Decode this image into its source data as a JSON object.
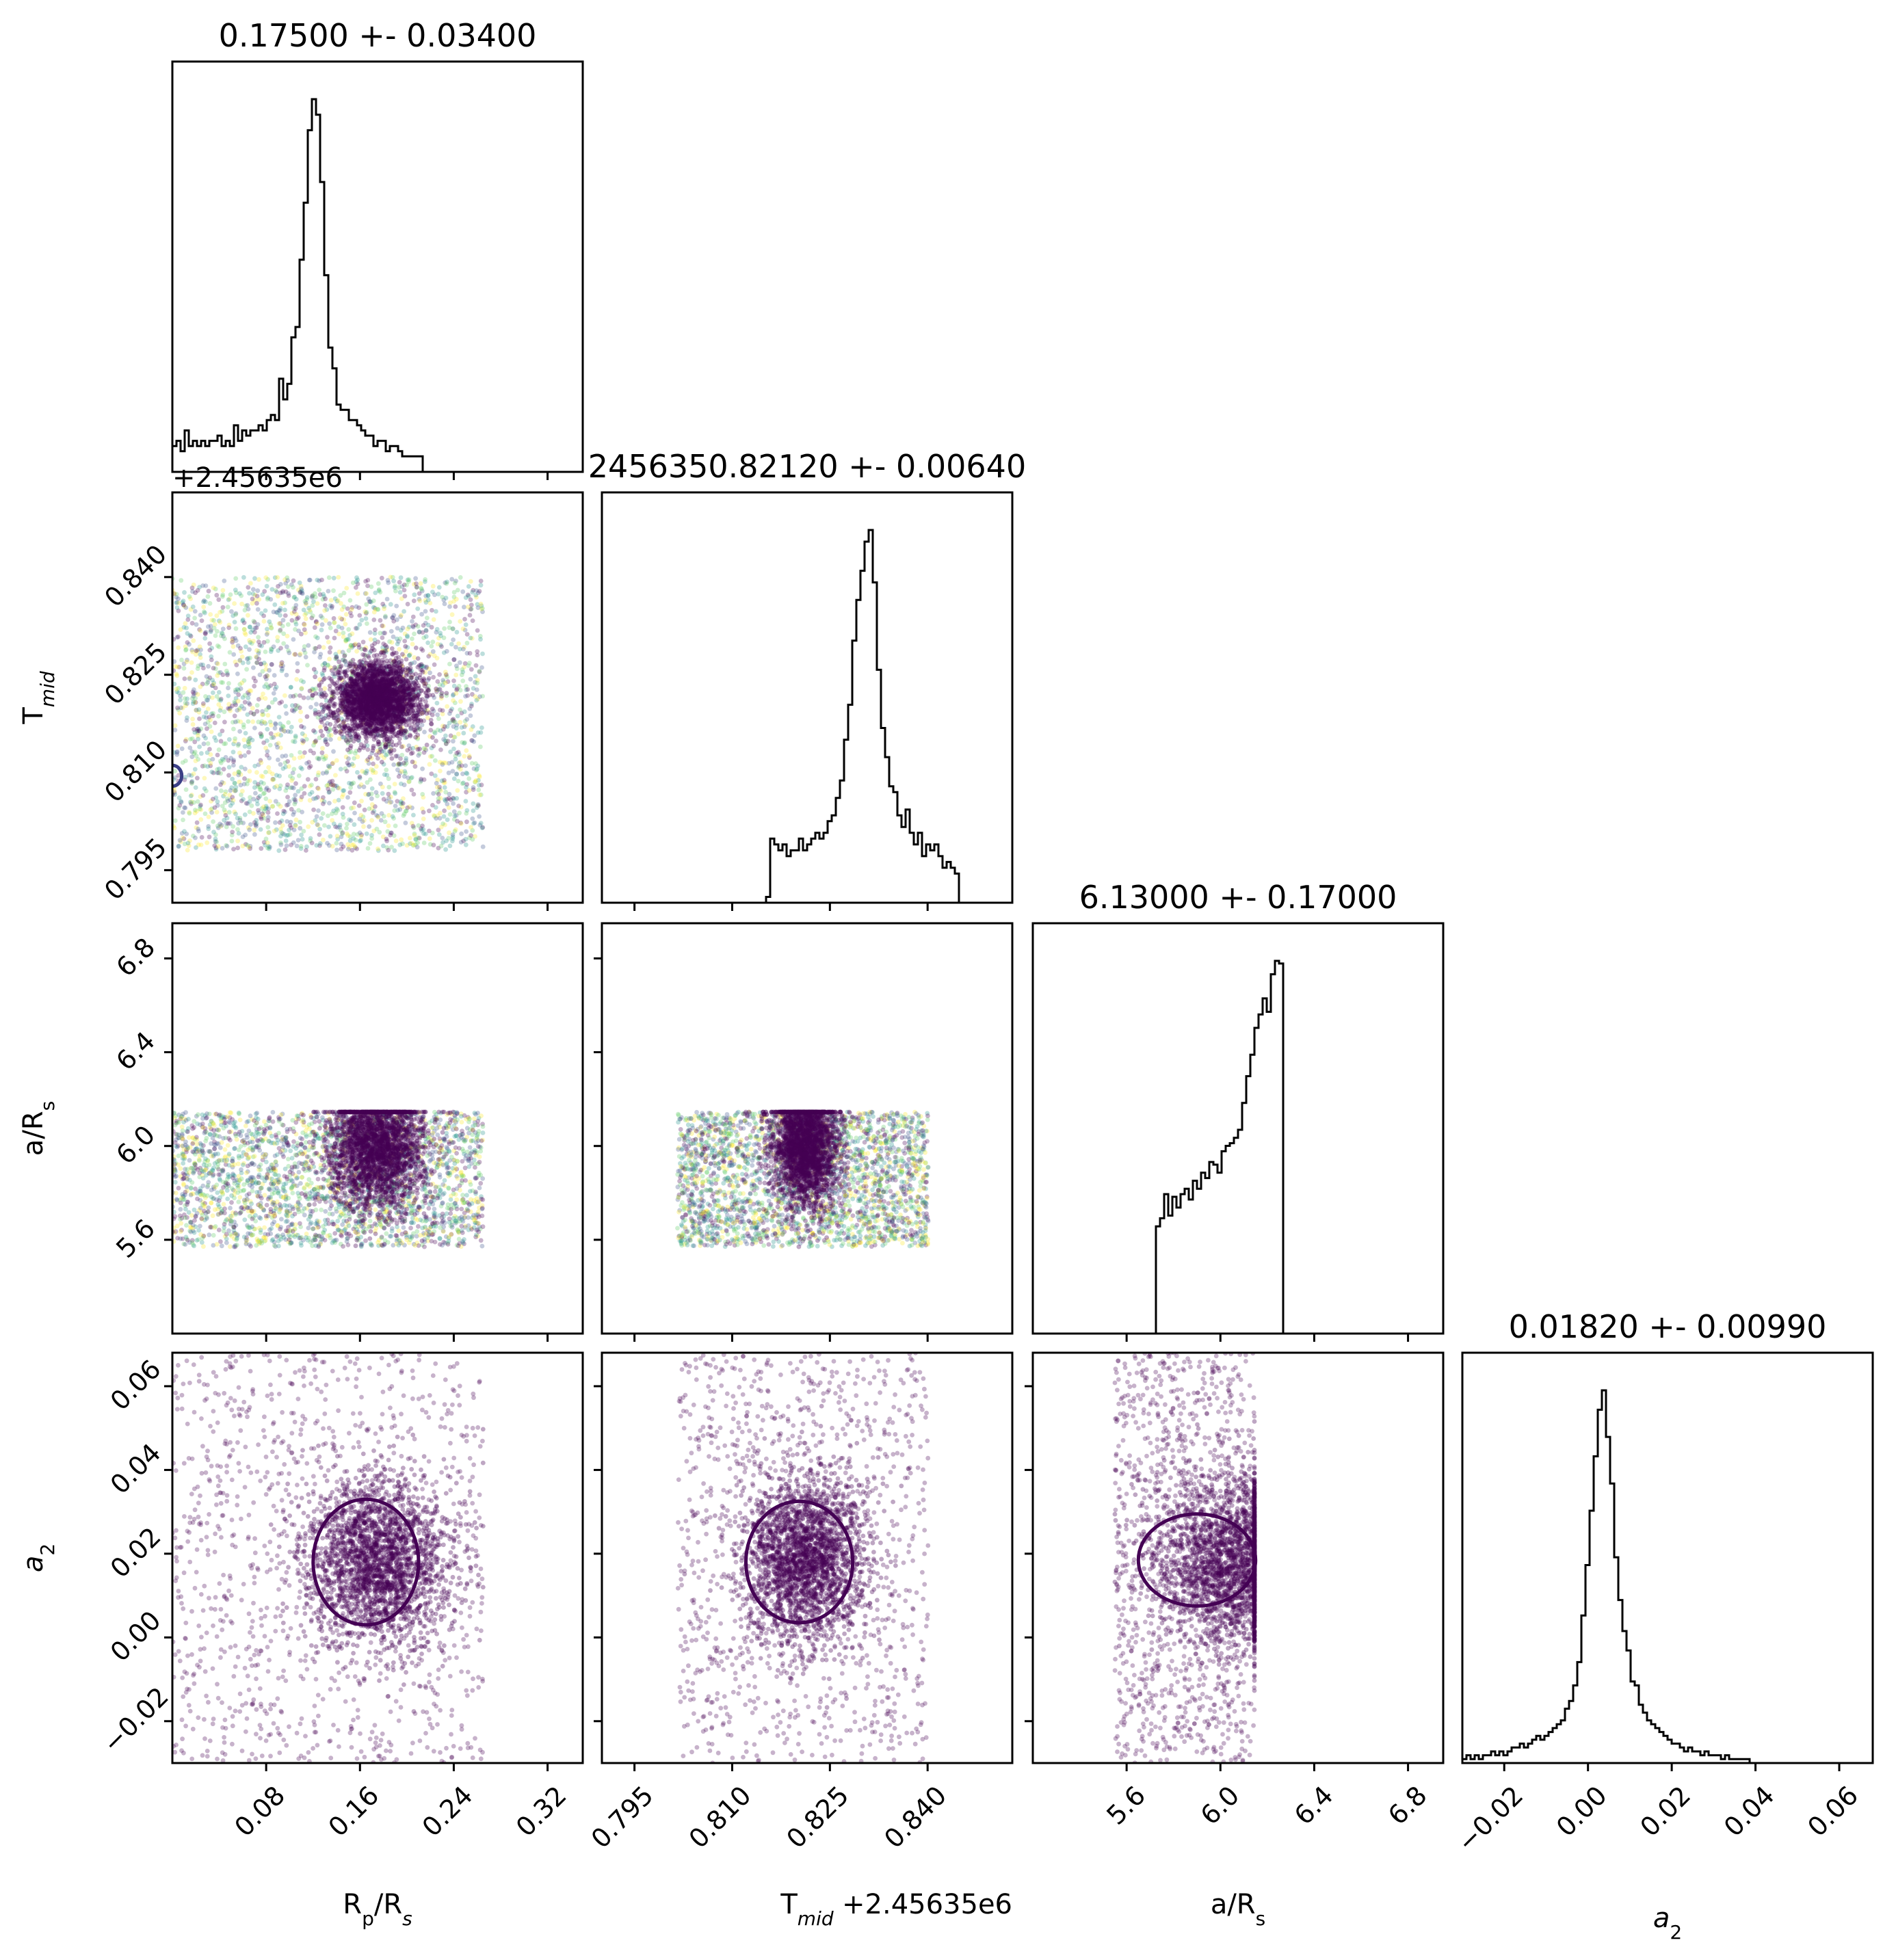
{
  "chart_data": {
    "type": "scatter",
    "kind": "corner-plot",
    "parameters": [
      {
        "key": "rp",
        "label_main": "R",
        "label_sub1": "p",
        "label_mid": "/R",
        "label_sub2": "s",
        "range": [
          0.0,
          0.35
        ],
        "ticks": [
          "0.08",
          "0.16",
          "0.24",
          "0.32"
        ],
        "tick_values": [
          0.08,
          0.16,
          0.24,
          0.32
        ],
        "offset_label": "",
        "title": "0.17500 +- 0.03400"
      },
      {
        "key": "tmid",
        "label_main": "T",
        "label_sub1": "mid",
        "label_mid": "",
        "label_sub2": "",
        "range": [
          0.79,
          0.853
        ],
        "ticks": [
          "0.795",
          "0.810",
          "0.825",
          "0.840"
        ],
        "tick_values": [
          0.795,
          0.81,
          0.825,
          0.84
        ],
        "offset_label": "+2.45635e6",
        "title": "2456350.82120 +- 0.00640"
      },
      {
        "key": "ars",
        "label_main": "a/R",
        "label_sub1": "s",
        "label_mid": "",
        "label_sub2": "",
        "range": [
          5.2,
          6.95
        ],
        "ticks": [
          "5.6",
          "6.0",
          "6.4",
          "6.8"
        ],
        "tick_values": [
          5.6,
          6.0,
          6.4,
          6.8
        ],
        "offset_label": "",
        "title": "6.13000 +- 0.17000"
      },
      {
        "key": "a2",
        "label_main": "a",
        "label_sub1": "2",
        "label_mid": "",
        "label_sub2": "",
        "range": [
          -0.03,
          0.068
        ],
        "ticks": [
          "−0.02",
          "0.00",
          "0.02",
          "0.04",
          "0.06"
        ],
        "tick_values": [
          -0.02,
          0.0,
          0.02,
          0.04,
          0.06
        ],
        "offset_label": "",
        "title": "0.01820 +- 0.00990"
      }
    ],
    "histograms": [
      {
        "param": "rp",
        "bins": {
          "start": 0.0,
          "width": 0.0035,
          "counts": [
            5,
            6,
            4,
            8,
            5,
            6,
            5,
            6,
            5,
            6,
            6,
            7,
            5,
            6,
            5,
            9,
            6,
            8,
            7,
            8,
            8,
            9,
            8,
            10,
            11,
            10,
            18,
            14,
            17,
            26,
            28,
            41,
            52,
            66,
            72,
            69,
            56,
            38,
            24,
            20,
            13,
            12,
            12,
            10,
            10,
            9,
            8,
            7,
            7,
            5,
            6,
            6,
            4,
            5,
            5,
            4,
            3,
            3,
            3,
            3,
            3,
            0,
            0,
            0,
            0,
            0,
            0,
            0,
            0,
            0,
            0,
            0,
            0,
            0,
            0,
            0,
            0,
            0,
            0,
            0,
            0,
            0,
            0,
            0,
            0,
            0,
            0,
            0,
            0,
            0,
            0,
            0,
            0,
            0,
            0,
            0,
            0,
            0,
            0,
            0
          ]
        }
      },
      {
        "param": "tmid",
        "bins": {
          "start": 0.79,
          "width": 0.00063,
          "counts": [
            0,
            0,
            0,
            0,
            0,
            0,
            0,
            0,
            0,
            0,
            0,
            0,
            0,
            0,
            0,
            0,
            0,
            0,
            0,
            0,
            0,
            0,
            0,
            0,
            0,
            0,
            0,
            0,
            0,
            0,
            0,
            0,
            0,
            0,
            0,
            0,
            0,
            0,
            0,
            0,
            1,
            11,
            10,
            9,
            10,
            8,
            9,
            9,
            11,
            9,
            10,
            11,
            12,
            11,
            12,
            14,
            15,
            18,
            21,
            28,
            34,
            45,
            52,
            57,
            62,
            64,
            55,
            40,
            30,
            25,
            20,
            19,
            15,
            13,
            16,
            12,
            10,
            12,
            8,
            10,
            9,
            10,
            8,
            6,
            7,
            6,
            5,
            0,
            0,
            0,
            0,
            0,
            0,
            0,
            0,
            0,
            0,
            0,
            0,
            0
          ]
        }
      },
      {
        "param": "ars",
        "bins": {
          "start": 5.2,
          "width": 0.0175,
          "counts": [
            0,
            0,
            0,
            0,
            0,
            0,
            0,
            0,
            0,
            0,
            0,
            0,
            0,
            0,
            0,
            0,
            0,
            0,
            0,
            0,
            0,
            0,
            0,
            0,
            0,
            0,
            0,
            0,
            0,
            0,
            40,
            43,
            52,
            44,
            51,
            47,
            52,
            54,
            50,
            57,
            54,
            60,
            58,
            64,
            63,
            60,
            68,
            70,
            71,
            73,
            76,
            86,
            96,
            104,
            114,
            119,
            125,
            120,
            134,
            139,
            138,
            0,
            0,
            0,
            0,
            0,
            0,
            0,
            0,
            0,
            0,
            0,
            0,
            0,
            0,
            0,
            0,
            0,
            0,
            0,
            0,
            0,
            0,
            0,
            0,
            0,
            0,
            0,
            0,
            0,
            0,
            0,
            0,
            0,
            0,
            0,
            0,
            0,
            0,
            0
          ]
        }
      },
      {
        "param": "a2",
        "bins": {
          "start": -0.03,
          "width": 0.00098,
          "counts": [
            1,
            2,
            1,
            2,
            1,
            2,
            2,
            3,
            2,
            3,
            2,
            3,
            4,
            4,
            5,
            4,
            5,
            6,
            7,
            6,
            7,
            8,
            9,
            10,
            11,
            14,
            16,
            20,
            26,
            38,
            51,
            65,
            79,
            91,
            96,
            84,
            72,
            53,
            42,
            34,
            29,
            21,
            20,
            15,
            13,
            11,
            10,
            9,
            8,
            7,
            6,
            5,
            5,
            4,
            3,
            4,
            3,
            3,
            2,
            3,
            2,
            2,
            2,
            1,
            2,
            1,
            1,
            1,
            1,
            1,
            0,
            0,
            0,
            0,
            0,
            0,
            0,
            0,
            0,
            0,
            0,
            0,
            0,
            0,
            0,
            0,
            0,
            0,
            0,
            0,
            0,
            0,
            0,
            0,
            0,
            0,
            0,
            0,
            0,
            0
          ]
        }
      }
    ],
    "scatter_panels": [
      {
        "x": "rp",
        "y": "tmid",
        "x_box": [
          0.0,
          0.265
        ],
        "y_box": [
          0.798,
          0.84
        ],
        "x_center": 0.175,
        "y_center": 0.8212,
        "x_sigma": 0.018,
        "y_sigma": 0.0028,
        "multicolor": true,
        "contours": [
          {
            "cx": 0.0,
            "cy": 0.8095,
            "rx": 0.008,
            "ry": 0.0016,
            "color": "#3b3f86"
          }
        ]
      },
      {
        "x": "rp",
        "y": "ars",
        "x_box": [
          0.0,
          0.265
        ],
        "y_box": [
          5.57,
          6.145
        ],
        "x_center": 0.175,
        "y_center": 6.0,
        "x_sigma": 0.02,
        "y_sigma": 0.13,
        "multicolor": true,
        "contours": []
      },
      {
        "x": "tmid",
        "y": "ars",
        "x_box": [
          0.8016,
          0.8401
        ],
        "y_box": [
          5.57,
          6.145
        ],
        "x_center": 0.8212,
        "y_center": 6.0,
        "x_sigma": 0.0025,
        "y_sigma": 0.13,
        "multicolor": true,
        "contours": []
      },
      {
        "x": "rp",
        "y": "a2",
        "x_box": [
          0.0,
          0.265
        ],
        "y_box": [
          -0.03,
          0.068
        ],
        "x_center": 0.175,
        "y_center": 0.0182,
        "x_sigma": 0.03,
        "y_sigma": 0.0099,
        "multicolor": false,
        "contours": [
          {
            "cx": 0.165,
            "cy": 0.018,
            "rx": 0.045,
            "ry": 0.015,
            "color": "#440154"
          }
        ]
      },
      {
        "x": "tmid",
        "y": "a2",
        "x_box": [
          0.8016,
          0.8401
        ],
        "y_box": [
          -0.03,
          0.068
        ],
        "x_center": 0.8212,
        "y_center": 0.0182,
        "x_sigma": 0.0045,
        "y_sigma": 0.0099,
        "multicolor": false,
        "contours": [
          {
            "cx": 0.8203,
            "cy": 0.018,
            "rx": 0.0082,
            "ry": 0.0145,
            "color": "#440154"
          }
        ]
      },
      {
        "x": "ars",
        "y": "a2",
        "x_box": [
          5.55,
          6.145
        ],
        "y_box": [
          -0.03,
          0.068
        ],
        "x_center": 6.05,
        "y_center": 0.0182,
        "x_sigma": 0.16,
        "y_sigma": 0.0099,
        "multicolor": false,
        "contours": [
          {
            "cx": 5.9,
            "cy": 0.0185,
            "rx": 0.25,
            "ry": 0.011,
            "color": "#440154"
          }
        ]
      }
    ],
    "colors": {
      "scatter_main": "#440154",
      "viridis": [
        "#440154",
        "#3b528b",
        "#21918c",
        "#5ec962",
        "#fde725"
      ],
      "frame": "#000000"
    },
    "grid": false,
    "legend": "none"
  }
}
